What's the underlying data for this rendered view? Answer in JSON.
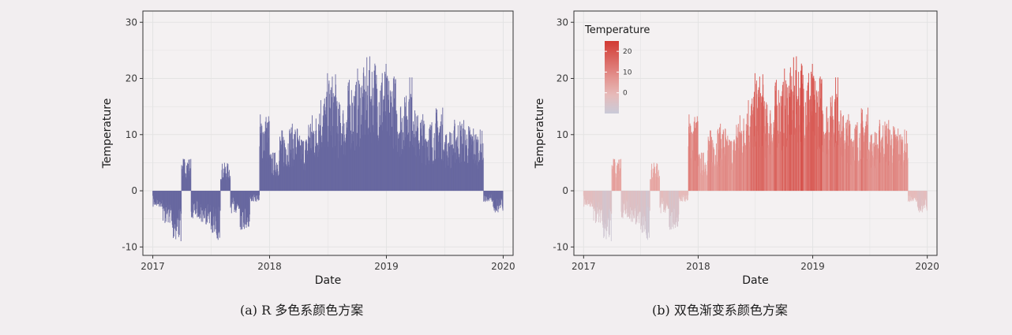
{
  "colors": {
    "bar_single": "#6868a0",
    "gradient_low": "#c9cad8",
    "gradient_mid": "#eab9b6",
    "gradient_high": "#d23a33",
    "panel_border": "#333333",
    "grid": "#e3e3e3",
    "background": "#f2eef0"
  },
  "chart_data": [
    {
      "type": "bar",
      "panel": "a",
      "caption": "(a) R 多色系颜色方案",
      "xlabel": "Date",
      "ylabel": "Temperature",
      "x_ticks": [
        "2017",
        "2018",
        "2019",
        "2020"
      ],
      "y_ticks": [
        -10,
        0,
        10,
        20,
        30
      ],
      "xlim": [
        "2016-12-01",
        "2020-02-01"
      ],
      "ylim": [
        -11.5,
        32
      ],
      "grid": true,
      "fill": "single color",
      "legend": null
    },
    {
      "type": "bar",
      "panel": "b",
      "caption": "(b) 双色渐变系颜色方案",
      "xlabel": "Date",
      "ylabel": "Temperature",
      "x_ticks": [
        "2017",
        "2018",
        "2019",
        "2020"
      ],
      "y_ticks": [
        -10,
        0,
        10,
        20,
        30
      ],
      "xlim": [
        "2016-12-01",
        "2020-02-01"
      ],
      "ylim": [
        -11.5,
        32
      ],
      "grid": true,
      "fill": "gradient by Temperature",
      "legend": {
        "title": "Temperature",
        "placement": "top-left inside",
        "ticks": [
          0,
          10,
          20
        ],
        "range": [
          -10,
          25
        ]
      }
    }
  ],
  "series_daily": {
    "start_date": "2017-01-01",
    "end_date": "2019-12-31",
    "temperature_monthly_envelope": [
      {
        "month": "2017-01",
        "value": -3
      },
      {
        "month": "2017-02",
        "value": -6
      },
      {
        "month": "2017-03",
        "value": -9
      },
      {
        "month": "2017-04",
        "value": 6
      },
      {
        "month": "2017-05",
        "value": -5
      },
      {
        "month": "2017-06",
        "value": -6
      },
      {
        "month": "2017-07",
        "value": -9
      },
      {
        "month": "2017-08",
        "value": 5
      },
      {
        "month": "2017-09",
        "value": -4
      },
      {
        "month": "2017-10",
        "value": -7
      },
      {
        "month": "2017-11",
        "value": -2
      },
      {
        "month": "2017-12",
        "value": 14
      },
      {
        "month": "2018-01",
        "value": 7
      },
      {
        "month": "2018-02",
        "value": 11
      },
      {
        "month": "2018-03",
        "value": 12
      },
      {
        "month": "2018-04",
        "value": 10
      },
      {
        "month": "2018-05",
        "value": 14
      },
      {
        "month": "2018-06",
        "value": 18
      },
      {
        "month": "2018-07",
        "value": 21
      },
      {
        "month": "2018-08",
        "value": 16
      },
      {
        "month": "2018-09",
        "value": 20
      },
      {
        "month": "2018-10",
        "value": 22
      },
      {
        "month": "2018-11",
        "value": 24
      },
      {
        "month": "2018-12",
        "value": 23
      },
      {
        "month": "2019-01",
        "value": 21
      },
      {
        "month": "2019-02",
        "value": 17
      },
      {
        "month": "2019-03",
        "value": 21
      },
      {
        "month": "2019-04",
        "value": 14
      },
      {
        "month": "2019-05",
        "value": 13
      },
      {
        "month": "2019-06",
        "value": 15
      },
      {
        "month": "2019-07",
        "value": 11
      },
      {
        "month": "2019-08",
        "value": 13
      },
      {
        "month": "2019-09",
        "value": 12
      },
      {
        "month": "2019-10",
        "value": 11
      },
      {
        "month": "2019-11",
        "value": -2
      },
      {
        "month": "2019-12",
        "value": -4
      }
    ]
  }
}
